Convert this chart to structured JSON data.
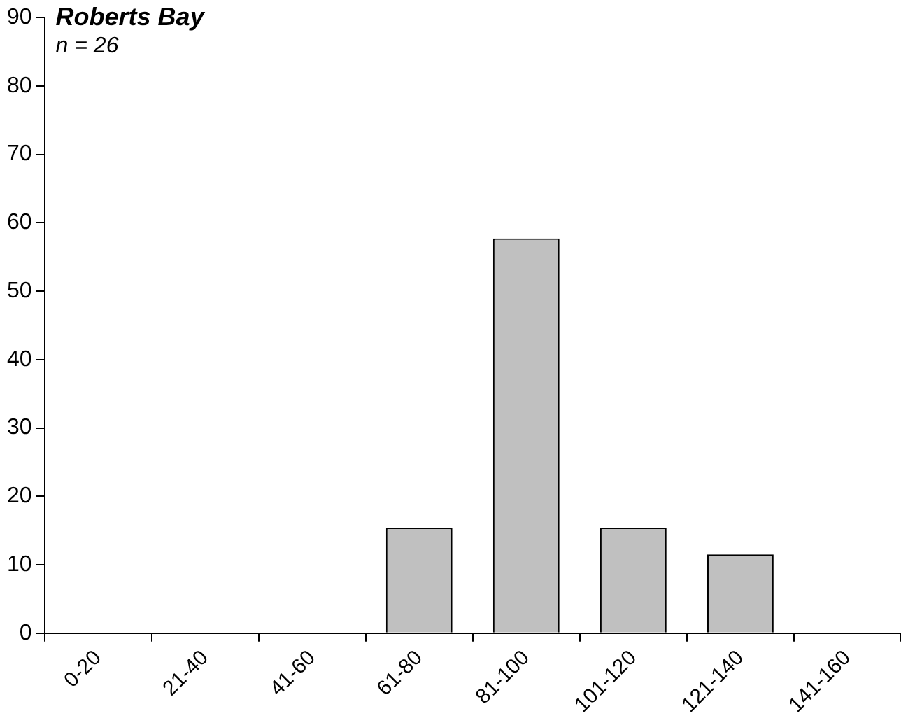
{
  "chart_data": {
    "type": "bar",
    "title": "Roberts Bay",
    "subtitle": "n = 26",
    "categories": [
      "0-20",
      "21-40",
      "41-60",
      "61-80",
      "81-100",
      "101-120",
      "121-140",
      "141-160"
    ],
    "values": [
      0,
      0,
      0,
      15.4,
      57.7,
      15.4,
      11.5,
      0
    ],
    "color": "#c0c0c0",
    "ylim": [
      0,
      90
    ],
    "yticks": [
      0,
      10,
      20,
      30,
      40,
      50,
      60,
      70,
      80,
      90
    ],
    "grid": false,
    "legend": false
  }
}
